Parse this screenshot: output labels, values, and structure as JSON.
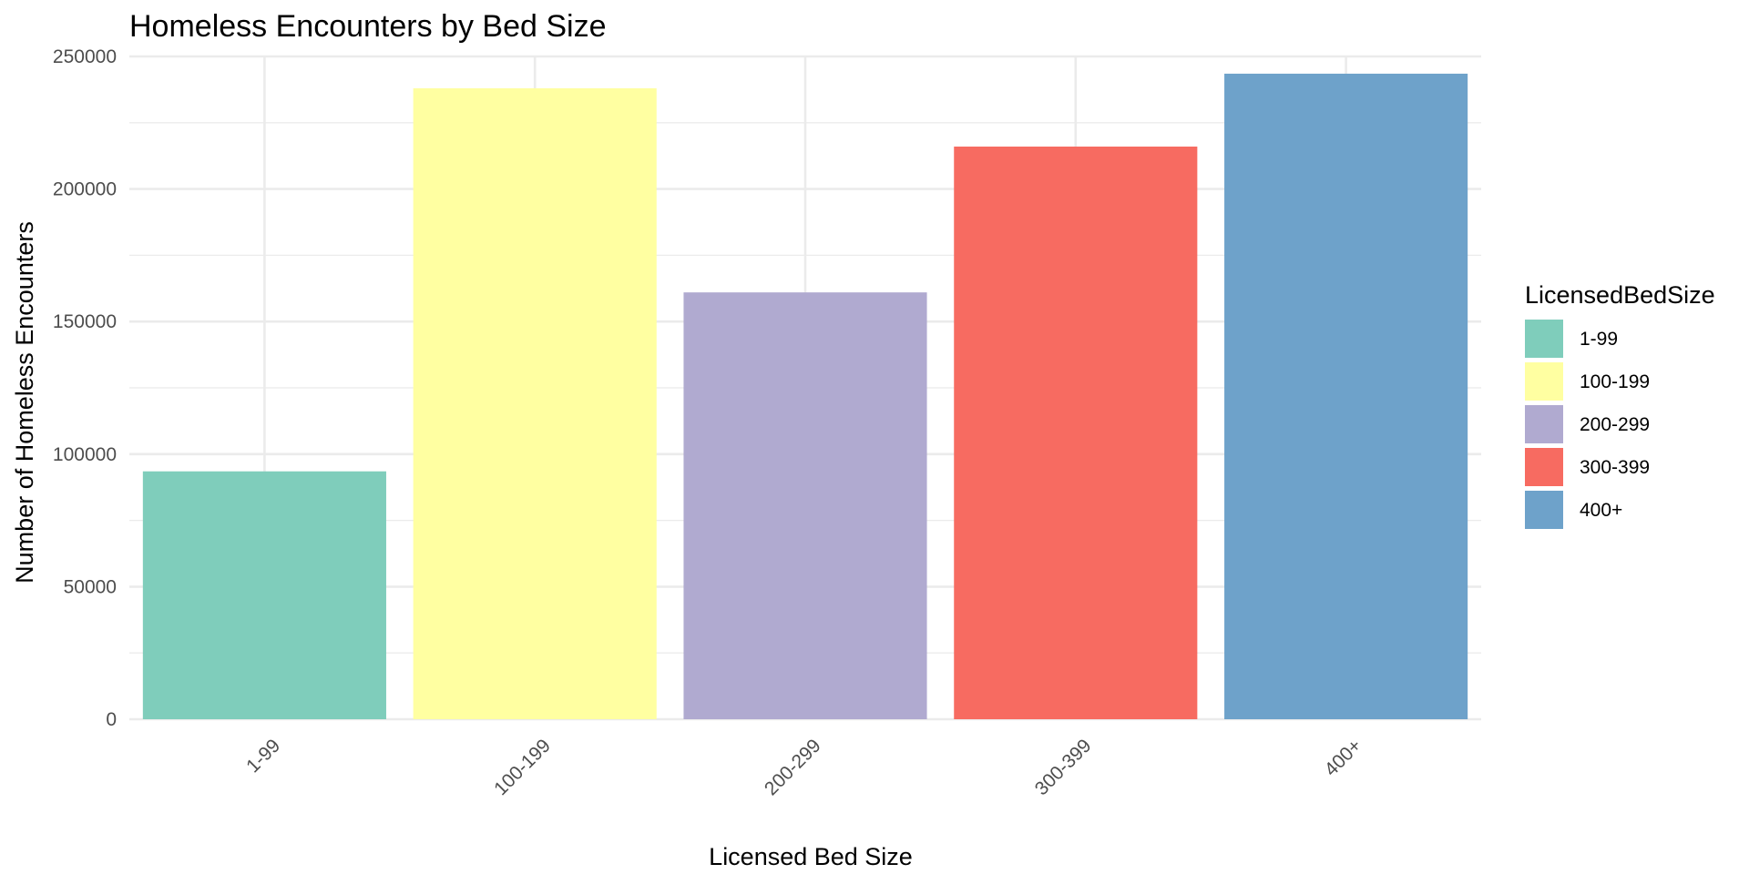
{
  "chart_data": {
    "type": "bar",
    "title": "Homeless Encounters by Bed Size",
    "xlabel": "Licensed Bed Size",
    "ylabel": "Number of Homeless Encounters",
    "categories": [
      "1-99",
      "100-199",
      "200-299",
      "300-399",
      "400+"
    ],
    "values": [
      93500,
      238000,
      161000,
      216000,
      243500
    ],
    "colors": [
      "#7fcdbb",
      "#ffffa1",
      "#b0aad0",
      "#f76b61",
      "#6ea2ca"
    ],
    "ylim": [
      0,
      250000
    ],
    "yticks": [
      "0",
      "50000",
      "100000",
      "150000",
      "200000",
      "250000"
    ],
    "ytick_values": [
      0,
      50000,
      100000,
      150000,
      200000,
      250000
    ],
    "grid": true,
    "legend": {
      "title": "LicensedBedSize",
      "position": "right",
      "entries": [
        "1-99",
        "100-199",
        "200-299",
        "300-399",
        "400+"
      ]
    }
  }
}
